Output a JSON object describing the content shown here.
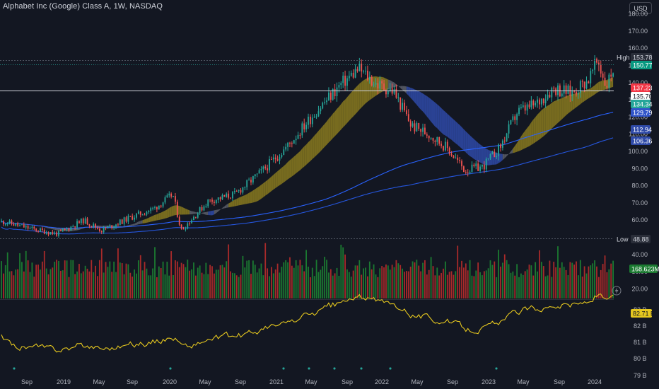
{
  "header": {
    "title": "Alphabet Inc (Google) Class A, 1W, NASDAQ",
    "currency_button": "USD"
  },
  "price_axis": {
    "ticks": [
      "180.00",
      "170.00",
      "160.00",
      "150.00",
      "140.00",
      "130.00",
      "120.00",
      "110.00",
      "100.00",
      "90.00",
      "80.00",
      "70.00",
      "60.00",
      "50.00",
      "40.00",
      "30.00",
      "20.00"
    ]
  },
  "badges": {
    "high_label": "High",
    "high_value": "153.78",
    "last": "150.77",
    "b1": "137.23",
    "b2": "135.70",
    "b3": "134.34",
    "b4": "129.79",
    "b5": "112.94",
    "b6": "106.36",
    "low_label": "Low",
    "low_value": "48.88",
    "volume": "168.623M"
  },
  "indicator_axis": {
    "ticks": [
      "83 B",
      "82 B",
      "81 B",
      "80 B",
      "79 B"
    ],
    "value": "82.71 B"
  },
  "time_axis": {
    "labels": [
      "Sep",
      "2019",
      "May",
      "Sep",
      "2020",
      "May",
      "Sep",
      "2021",
      "May",
      "Sep",
      "2022",
      "May",
      "Sep",
      "2023",
      "May",
      "Sep",
      "2024"
    ]
  },
  "colors": {
    "up": "#26a69a",
    "down": "#ef5350",
    "up_vol": "#1b7a31",
    "down_vol": "#a82a2a",
    "ribbon_gold": "#8a7a1e",
    "ribbon_blue": "#2f4aa8",
    "ribbon_gray": "#5d606b",
    "line_blue": "#2962ff",
    "indicator": "#e5c71f",
    "background": "#131722"
  },
  "chart_data": {
    "type": "candlestick",
    "title": "Alphabet Inc (Google) Class A, 1W, NASDAQ",
    "x_labels": [
      "Sep",
      "2019",
      "May",
      "Sep",
      "2020",
      "May",
      "Sep",
      "2021",
      "May",
      "Sep",
      "2022",
      "May",
      "Sep",
      "2023",
      "May",
      "Sep",
      "2024"
    ],
    "price_ylim": [
      15,
      185
    ],
    "price_path": [
      [
        "2018-07",
        59
      ],
      [
        "2018-10",
        55
      ],
      [
        "2019-01",
        52
      ],
      [
        "2019-04",
        60
      ],
      [
        "2019-06",
        54
      ],
      [
        "2019-09",
        61
      ],
      [
        "2019-12",
        67
      ],
      [
        "2020-02",
        75
      ],
      [
        "2020-03",
        54
      ],
      [
        "2020-06",
        71
      ],
      [
        "2020-09",
        75
      ],
      [
        "2020-12",
        88
      ],
      [
        "2021-03",
        103
      ],
      [
        "2021-06",
        122
      ],
      [
        "2021-09",
        139
      ],
      [
        "2021-11",
        148
      ],
      [
        "2022-01",
        139
      ],
      [
        "2022-03",
        135
      ],
      [
        "2022-05",
        115
      ],
      [
        "2022-07",
        110
      ],
      [
        "2022-09",
        102
      ],
      [
        "2022-11",
        89
      ],
      [
        "2023-01",
        91
      ],
      [
        "2023-03",
        102
      ],
      [
        "2023-05",
        123
      ],
      [
        "2023-07",
        127
      ],
      [
        "2023-09",
        137
      ],
      [
        "2023-11",
        134
      ],
      [
        "2024-01",
        142
      ],
      [
        "2024-02",
        153
      ],
      [
        "2024-03",
        138
      ],
      [
        "2024-04",
        151
      ]
    ],
    "high": 153.78,
    "low": 48.88,
    "last": 150.77,
    "price_levels": [
      137.23,
      135.7,
      134.34,
      129.79,
      112.94,
      106.36
    ],
    "volume_last": "168.623M",
    "indicator_ticks": [
      "83 B",
      "82 B",
      "81 B",
      "80 B",
      "79 B"
    ],
    "indicator_last": "82.71 B"
  }
}
